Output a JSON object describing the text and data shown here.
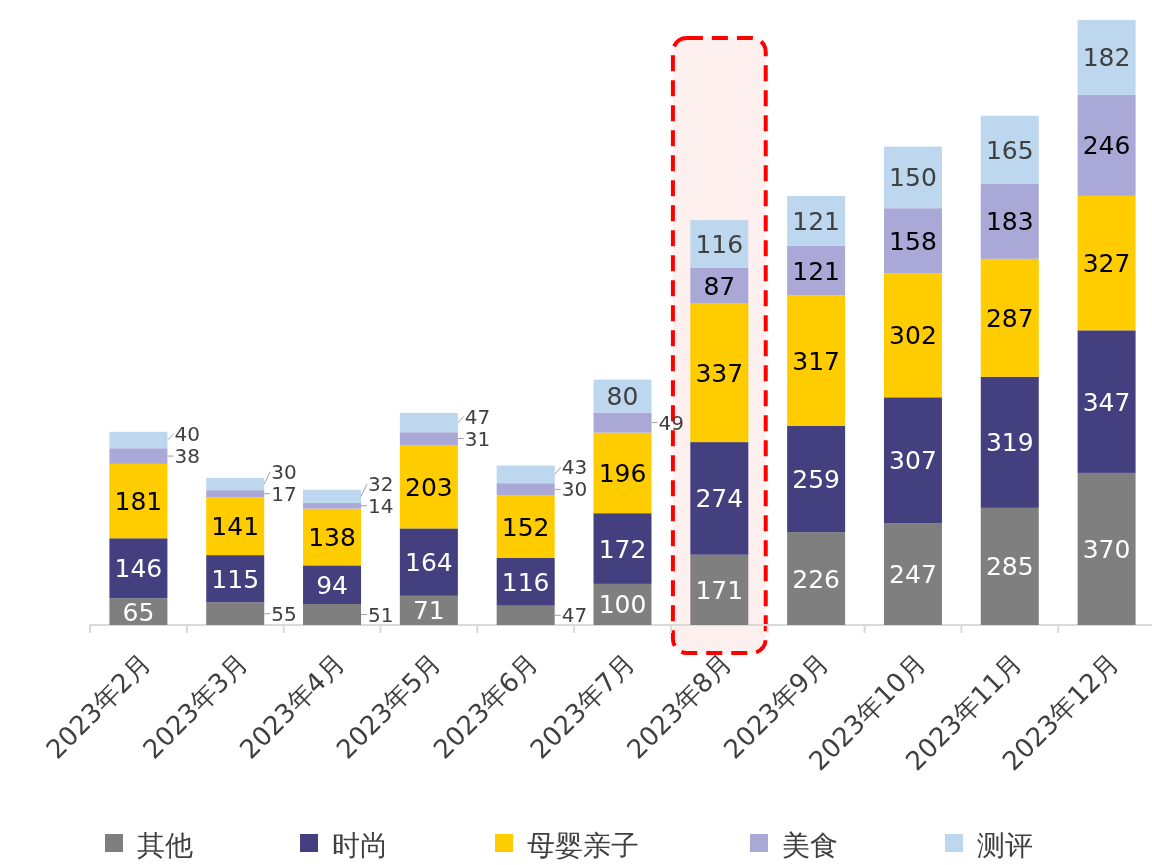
{
  "chart_data": {
    "type": "bar",
    "stacked": true,
    "data_labels": true,
    "legend": "bottom",
    "categories": [
      "2023年2月",
      "2023年3月",
      "2023年4月",
      "2023年5月",
      "2023年6月",
      "2023年7月",
      "2023年8月",
      "2023年9月",
      "2023年10月",
      "2023年11月",
      "2023年12月"
    ],
    "series": [
      {
        "name": "其他",
        "color": "#7f7f7f",
        "values": [
          65,
          55,
          51,
          71,
          47,
          100,
          171,
          226,
          247,
          285,
          370
        ]
      },
      {
        "name": "时尚",
        "color": "#44407f",
        "values": [
          146,
          115,
          94,
          164,
          116,
          172,
          274,
          259,
          307,
          319,
          347
        ]
      },
      {
        "name": "母婴亲子",
        "color": "#ffcc00",
        "values": [
          181,
          141,
          138,
          203,
          152,
          196,
          337,
          317,
          302,
          287,
          327
        ]
      },
      {
        "name": "美食",
        "color": "#a9a8d6",
        "values": [
          38,
          17,
          14,
          31,
          30,
          49,
          87,
          121,
          158,
          183,
          246
        ]
      },
      {
        "name": "测评",
        "color": "#bdd7ee",
        "values": [
          40,
          30,
          32,
          47,
          43,
          80,
          116,
          121,
          150,
          165,
          182
        ]
      }
    ],
    "bands": [
      {
        "axis": "x",
        "from": "2023年8月",
        "to": "2023年8月",
        "color": "#ff0000"
      }
    ]
  }
}
